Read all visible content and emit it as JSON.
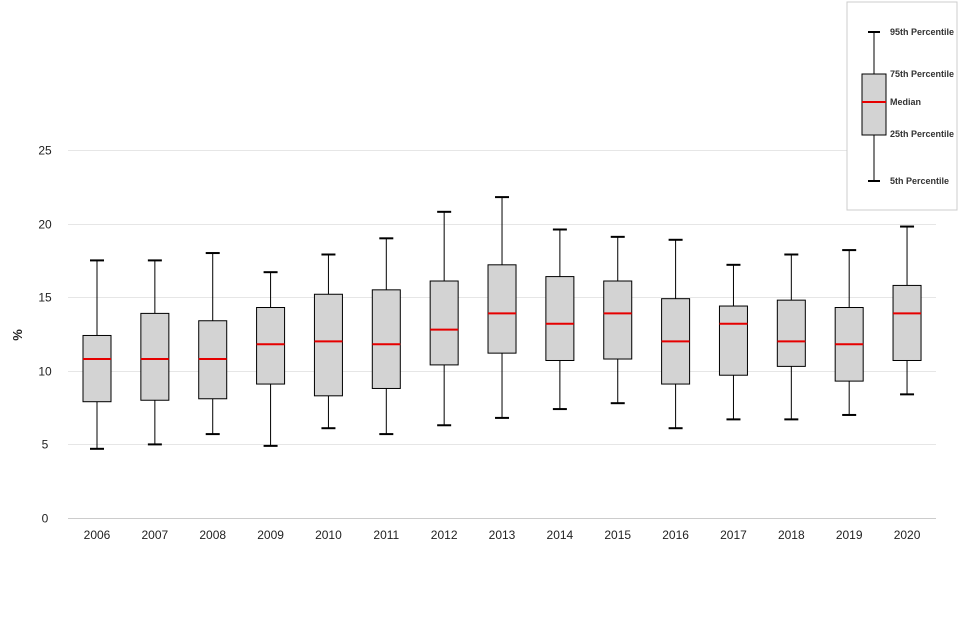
{
  "chart_data": {
    "type": "boxplot",
    "title": "",
    "xlabel": "",
    "ylabel": "%",
    "ylim": [
      0,
      25
    ],
    "yticks": [
      0,
      5,
      10,
      15,
      20,
      25
    ],
    "grid": true,
    "categories": [
      "2006",
      "2007",
      "2008",
      "2009",
      "2010",
      "2011",
      "2012",
      "2013",
      "2014",
      "2015",
      "2016",
      "2017",
      "2018",
      "2019",
      "2020"
    ],
    "p5": [
      4.7,
      5.0,
      5.7,
      4.9,
      6.1,
      5.7,
      6.3,
      6.8,
      7.4,
      7.8,
      6.1,
      6.7,
      6.7,
      7.0,
      8.4
    ],
    "p25": [
      7.9,
      8.0,
      8.1,
      9.1,
      8.3,
      8.8,
      10.4,
      11.2,
      10.7,
      10.8,
      9.1,
      9.7,
      10.3,
      9.3,
      10.7
    ],
    "median": [
      10.8,
      10.8,
      10.8,
      11.8,
      12.0,
      11.8,
      12.8,
      13.9,
      13.2,
      13.9,
      12.0,
      13.2,
      12.0,
      11.8,
      13.9
    ],
    "p75": [
      12.4,
      13.9,
      13.4,
      14.3,
      15.2,
      15.5,
      16.1,
      17.2,
      16.4,
      16.1,
      14.9,
      14.4,
      14.8,
      14.3,
      15.8
    ],
    "p95": [
      17.5,
      17.5,
      18.0,
      16.7,
      17.9,
      19.0,
      20.8,
      21.8,
      19.6,
      19.1,
      18.9,
      17.2,
      17.9,
      18.2,
      19.8
    ],
    "colors": {
      "box": "#d3d3d3",
      "median": "#e60000",
      "whisker": "#000000",
      "grid": "#e6e6e6"
    },
    "legend": {
      "placement": "top-right",
      "p95_label": "95th Percentile",
      "p75_label": "75th Percentile",
      "median_label": "Median",
      "p25_label": "25th Percentile",
      "p5_label": "5th Percentile"
    }
  }
}
